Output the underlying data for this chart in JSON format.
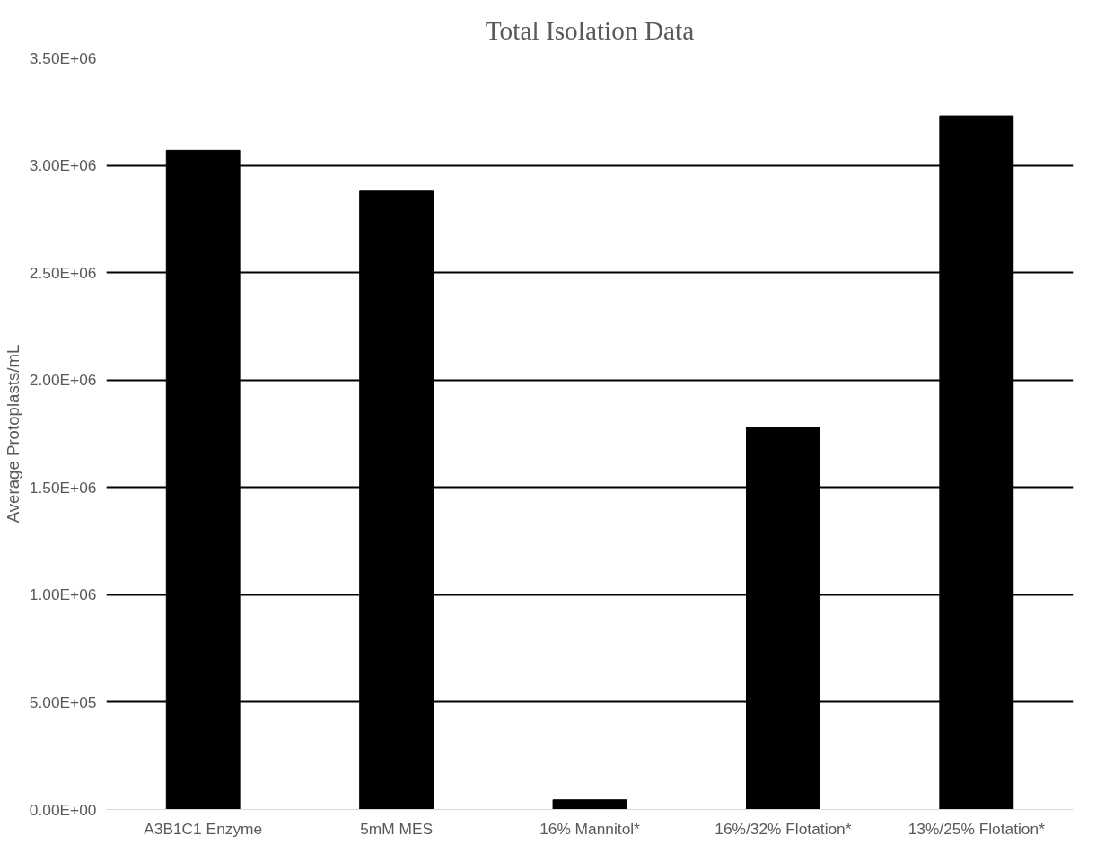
{
  "chart_data": {
    "type": "bar",
    "title": "Total Isolation Data",
    "ylabel": "Average Protoplasts/mL",
    "categories": [
      "A3B1C1 Enzyme",
      "5mM MES",
      "16% Mannitol*",
      "16%/32% Flotation*",
      "13%/25% Flotation*"
    ],
    "values": [
      3070000,
      2880000,
      45000,
      1780000,
      3230000
    ],
    "color": "#000000",
    "ylim": [
      0,
      3500000
    ],
    "yticks": [
      {
        "value": 0,
        "label": "0.00E+00"
      },
      {
        "value": 500000,
        "label": "5.00E+05"
      },
      {
        "value": 1000000,
        "label": "1.00E+06"
      },
      {
        "value": 1500000,
        "label": "1.50E+06"
      },
      {
        "value": 2000000,
        "label": "2.00E+06"
      },
      {
        "value": 2500000,
        "label": "2.50E+06"
      },
      {
        "value": 3000000,
        "label": "3.00E+06"
      },
      {
        "value": 3500000,
        "label": "3.50E+06"
      }
    ],
    "grid": "y"
  }
}
